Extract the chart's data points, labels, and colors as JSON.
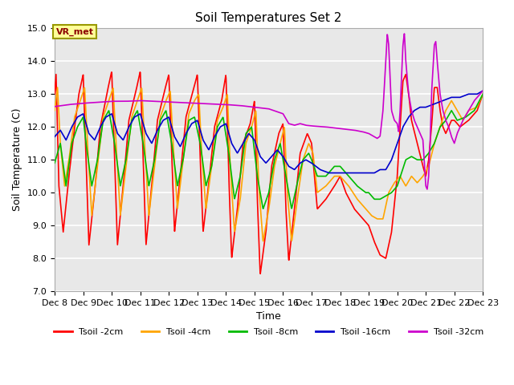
{
  "title": "Soil Temperatures Set 2",
  "xlabel": "Time",
  "ylabel": "Soil Temperature (C)",
  "ylim": [
    7.0,
    15.0
  ],
  "yticks": [
    7.0,
    8.0,
    9.0,
    10.0,
    11.0,
    12.0,
    13.0,
    14.0,
    15.0
  ],
  "plot_bg_color": "#e8e8e8",
  "vr_met_label": "VR_met",
  "legend_labels": [
    "Tsoil -2cm",
    "Tsoil -4cm",
    "Tsoil -8cm",
    "Tsoil -16cm",
    "Tsoil -32cm"
  ],
  "line_colors": [
    "#ff0000",
    "#ffa500",
    "#00bb00",
    "#0000cc",
    "#cc00cc"
  ],
  "line_width": 1.2,
  "xtick_days": [
    8,
    9,
    10,
    11,
    12,
    13,
    14,
    15,
    16,
    17,
    18,
    19,
    20,
    21,
    22,
    23
  ],
  "title_fontsize": 11,
  "axis_fontsize": 9,
  "tick_fontsize": 8
}
